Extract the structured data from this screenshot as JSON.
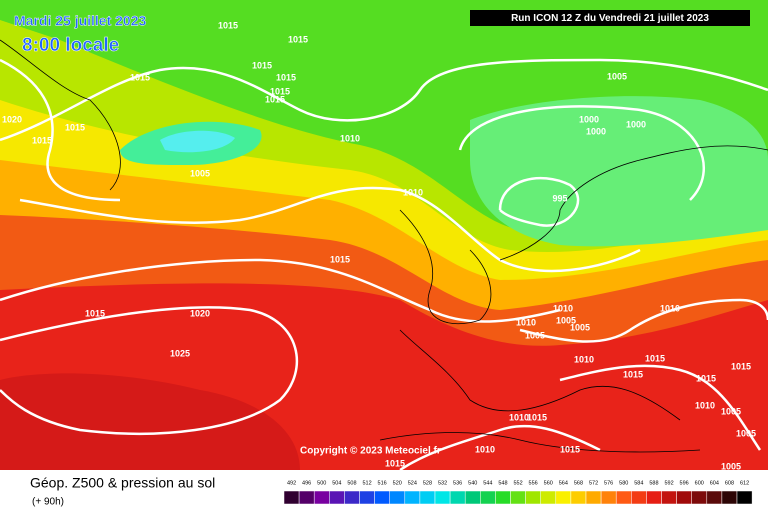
{
  "header": {
    "date": "Mardi 25 juillet 2023",
    "time": "8:00 locale",
    "run": "Run ICON 12 Z du Vendredi 21 juillet 2023",
    "copyright": "Copyright © 2023 Meteociel.fr"
  },
  "map": {
    "isobar_labels": [
      "1015",
      "1015",
      "1015",
      "1015",
      "1015",
      "1015",
      "1015",
      "1020",
      "1015",
      "1015",
      "1010",
      "1005",
      "1005",
      "1000",
      "1000",
      "1000",
      "995",
      "1010",
      "1015",
      "1015",
      "1020",
      "1025",
      "1010",
      "1010",
      "1005",
      "1005",
      "1005",
      "1010",
      "1010",
      "1015",
      "1015",
      "1015",
      "1015",
      "1010",
      "1005",
      "1005",
      "1005",
      "1010",
      "1015",
      "1010",
      "1015",
      "1015"
    ]
  },
  "legend": {
    "title": "Géop. Z500 & pression au sol",
    "subtitle": "(+ 90h)",
    "scale": [
      492,
      496,
      500,
      504,
      508,
      512,
      516,
      520,
      524,
      528,
      532,
      536,
      540,
      544,
      548,
      552,
      556,
      560,
      564,
      568,
      572,
      576,
      580,
      584,
      588,
      592,
      596,
      600,
      604,
      608,
      612
    ]
  }
}
